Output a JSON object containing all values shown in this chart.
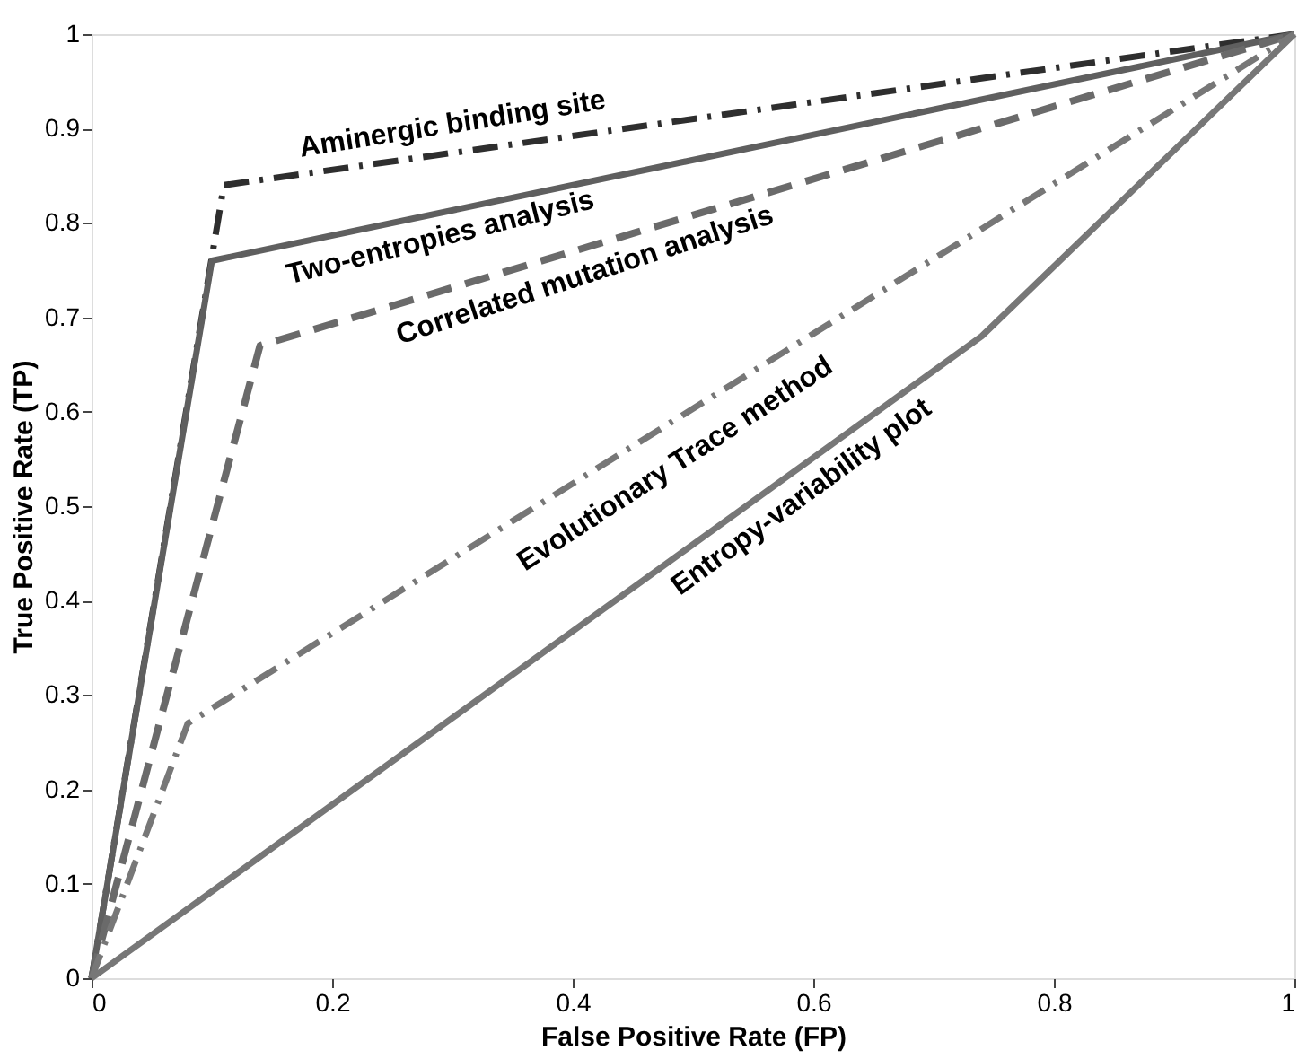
{
  "chart_data": {
    "type": "line",
    "xlabel": "False Positive Rate (FP)",
    "ylabel": "True Positive Rate (TP)",
    "xlim": [
      0,
      1
    ],
    "ylim": [
      0,
      1
    ],
    "xticks": [
      0,
      0.2,
      0.4,
      0.6,
      0.8,
      1
    ],
    "yticks": [
      0,
      0.1,
      0.2,
      0.3,
      0.4,
      0.5,
      0.6,
      0.7,
      0.8,
      0.9,
      1
    ],
    "grid": false,
    "marker": "none",
    "series": [
      {
        "name": "Aminergic binding site",
        "color": "#2e2e2e",
        "line_style": "dashdot",
        "x": [
          0,
          0.11,
          1
        ],
        "values": [
          0,
          0.84,
          1
        ]
      },
      {
        "name": "Two-entropies analysis",
        "color": "#5f5f5f",
        "line_style": "solid",
        "x": [
          0,
          0.1,
          1
        ],
        "values": [
          0,
          0.76,
          1
        ]
      },
      {
        "name": "Correlated mutation analysis",
        "color": "#6a6a6a",
        "line_style": "dashed",
        "x": [
          0,
          0.14,
          1
        ],
        "values": [
          0,
          0.67,
          1
        ]
      },
      {
        "name": "Evolutionary Trace method",
        "color": "#777777",
        "line_style": "dashdot",
        "x": [
          0,
          0.08,
          1
        ],
        "values": [
          0,
          0.27,
          1
        ]
      },
      {
        "name": "Entropy-variability plot",
        "color": "#777777",
        "line_style": "solid",
        "x": [
          0,
          0.74,
          1
        ],
        "values": [
          0,
          0.68,
          1
        ]
      }
    ]
  }
}
